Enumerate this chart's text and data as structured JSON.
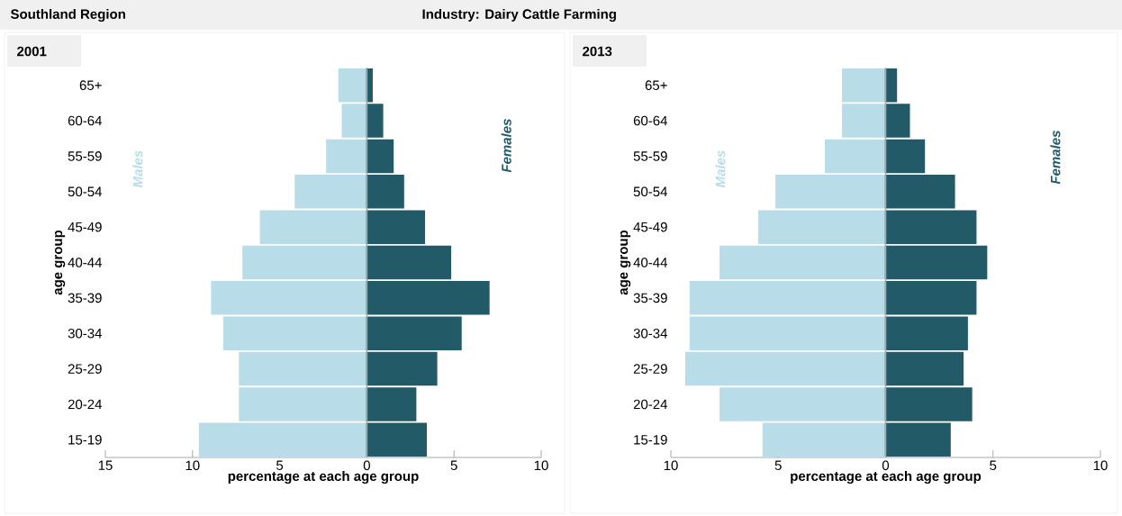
{
  "chart_data": [
    {
      "type": "bar",
      "orientation": "horizontal",
      "stacked": true,
      "title": "2001",
      "annotations": [
        "Southland Region"
      ],
      "xlabel": "percentage at each age group",
      "ylabel": "age group",
      "categories": [
        "65+",
        "60-64",
        "55-59",
        "50-54",
        "45-49",
        "40-44",
        "35-39",
        "30-34",
        "25-29",
        "20-24",
        "15-19"
      ],
      "series": [
        {
          "name": "Males",
          "color": "#b9dde8",
          "values": [
            -1.6,
            -1.4,
            -2.3,
            -4.1,
            -6.1,
            -7.1,
            -8.9,
            -8.2,
            -7.3,
            -7.3,
            -9.6
          ]
        },
        {
          "name": "Females",
          "color": "#225a68",
          "values": [
            0.3,
            0.9,
            1.5,
            2.1,
            3.3,
            4.8,
            7.0,
            5.4,
            4.0,
            2.8,
            3.4
          ]
        }
      ],
      "xlim": [
        -15,
        10
      ],
      "xticks": [
        {
          "value": -15,
          "label": "15"
        },
        {
          "value": -10,
          "label": "10"
        },
        {
          "value": -5,
          "label": "5"
        },
        0,
        5,
        10
      ]
    },
    {
      "type": "bar",
      "orientation": "horizontal",
      "stacked": true,
      "title": "2013",
      "annotations": [
        "Industry:  Dairy Cattle Farming"
      ],
      "xlabel": "percentage at each age group",
      "ylabel": "age group",
      "categories": [
        "65+",
        "60-64",
        "55-59",
        "50-54",
        "45-49",
        "40-44",
        "35-39",
        "30-34",
        "25-29",
        "20-24",
        "15-19"
      ],
      "series": [
        {
          "name": "Males",
          "color": "#b9dde8",
          "values": [
            -2.0,
            -2.0,
            -2.8,
            -5.1,
            -5.9,
            -7.7,
            -9.1,
            -9.1,
            -9.3,
            -7.7,
            -5.7
          ]
        },
        {
          "name": "Females",
          "color": "#225a68",
          "values": [
            0.5,
            1.1,
            1.8,
            3.2,
            4.2,
            4.7,
            4.2,
            3.8,
            3.6,
            4.0,
            3.0
          ]
        }
      ],
      "xlim": [
        -10,
        10
      ],
      "xticks": [
        {
          "value": -10,
          "label": "10"
        },
        {
          "value": -5,
          "label": "5"
        },
        0,
        5,
        10
      ]
    }
  ]
}
